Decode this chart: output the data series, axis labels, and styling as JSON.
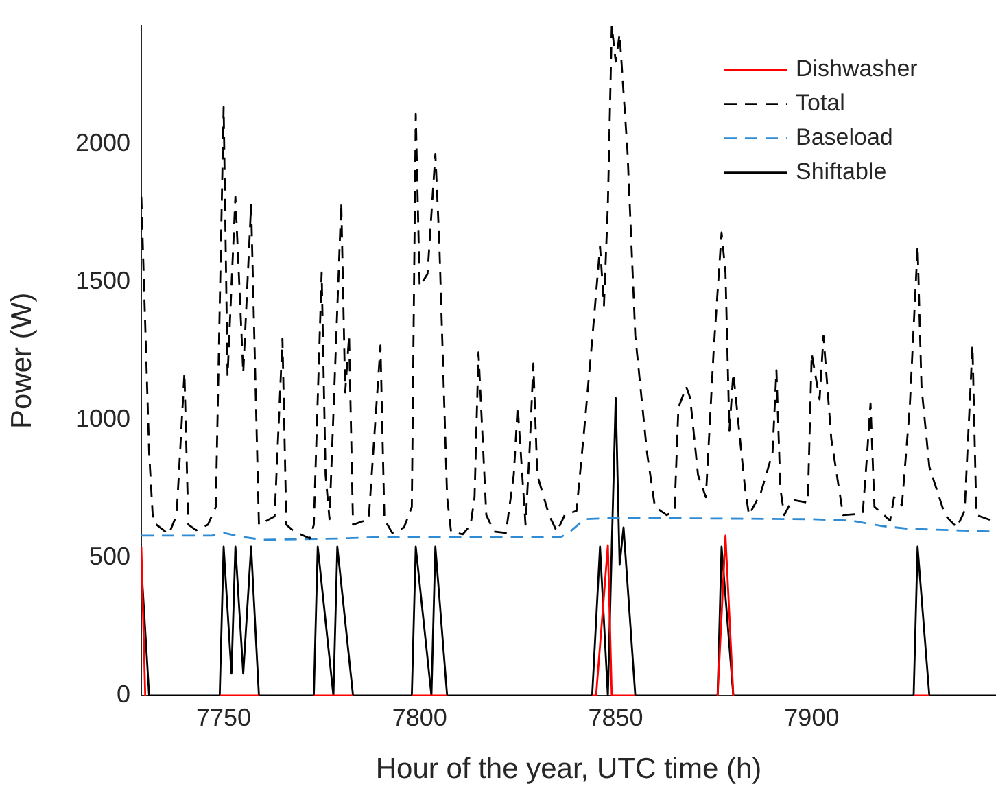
{
  "chart_data": {
    "type": "line",
    "xlabel": "Hour of the year, UTC time (h)",
    "ylabel": "Power (W)",
    "xlim": [
      7729,
      7947
    ],
    "ylim": [
      0,
      2430
    ],
    "xticks": [
      7750,
      7800,
      7850,
      7900
    ],
    "yticks": [
      0,
      500,
      1000,
      1500,
      2000
    ],
    "legend": "top right",
    "marker": "none",
    "series": [
      {
        "name": "Dishwasher",
        "color": "#ff0000",
        "line_style": "solid",
        "x": [
          7729,
          7730,
          7731,
          7749,
          7759,
          7760,
          7773,
          7783,
          7784,
          7798,
          7807,
          7808,
          7844,
          7845,
          7848,
          7849,
          7855,
          7856,
          7876,
          7878,
          7880,
          7881,
          7926,
          7930
        ],
        "values": [
          540,
          0,
          null,
          0,
          0,
          null,
          0,
          0,
          null,
          0,
          0,
          null,
          0,
          0,
          545,
          0,
          0,
          null,
          0,
          580,
          0,
          null,
          0,
          0
        ]
      },
      {
        "name": "Total",
        "color": "#000000",
        "line_style": "dashed",
        "x": [
          7729,
          7731,
          7732,
          7736,
          7738,
          7740,
          7741,
          7743,
          7746,
          7748,
          7750,
          7751,
          7753,
          7755,
          7757,
          7759,
          7763,
          7765,
          7766,
          7768,
          7772,
          7773,
          7775,
          7776,
          7777,
          7780,
          7781,
          7782,
          7783,
          7787,
          7790,
          7791,
          7793,
          7796,
          7798,
          7799,
          7800,
          7802,
          7804,
          7805,
          7807,
          7808,
          7811,
          7813,
          7814,
          7815,
          7817,
          7819,
          7822,
          7824,
          7825,
          7827,
          7828,
          7829,
          7830,
          7833,
          7835,
          7837,
          7840,
          7842,
          7844,
          7846,
          7847,
          7848,
          7849,
          7850,
          7851,
          7853,
          7855,
          7858,
          7860,
          7863,
          7865,
          7866,
          7868,
          7869,
          7871,
          7873,
          7875,
          7877,
          7878,
          7879,
          7880,
          7883,
          7884,
          7887,
          7890,
          7891,
          7892,
          7893,
          7895,
          7899,
          7900,
          7902,
          7903,
          7905,
          7908,
          7913,
          7914,
          7915,
          7916,
          7920,
          7921,
          7923,
          7925,
          7927,
          7928,
          7930,
          7934,
          7937,
          7939,
          7941,
          7942,
          7946,
          7947
        ],
        "values": [
          1810,
          880,
          630,
          585,
          655,
          1170,
          620,
          600,
          620,
          685,
          2135,
          1160,
          1810,
          1170,
          1780,
          620,
          650,
          1295,
          620,
          595,
          570,
          620,
          1535,
          800,
          640,
          1790,
          1100,
          1305,
          620,
          640,
          1270,
          640,
          590,
          610,
          685,
          2110,
          1485,
          1530,
          1965,
          1645,
          720,
          595,
          585,
          620,
          720,
          1245,
          655,
          595,
          590,
          800,
          1050,
          620,
          880,
          1205,
          800,
          655,
          595,
          655,
          670,
          970,
          1290,
          1630,
          1415,
          1780,
          2430,
          2300,
          2400,
          1975,
          1305,
          880,
          685,
          655,
          670,
          1045,
          1120,
          1080,
          800,
          720,
          1255,
          1680,
          1535,
          960,
          1170,
          750,
          655,
          735,
          880,
          1180,
          750,
          655,
          710,
          700,
          1240,
          1075,
          1305,
          930,
          655,
          660,
          850,
          1060,
          685,
          635,
          720,
          690,
          1045,
          1630,
          1120,
          830,
          655,
          610,
          670,
          1270,
          655,
          635,
          640
        ]
      },
      {
        "name": "Baseload",
        "color": "#2e8bd4",
        "line_style": "dashed",
        "x": [
          7729,
          7747,
          7750,
          7755,
          7760,
          7780,
          7790,
          7836,
          7838,
          7842,
          7850,
          7900,
          7910,
          7918,
          7925,
          7947
        ],
        "values": [
          580,
          580,
          590,
          575,
          565,
          570,
          575,
          575,
          590,
          640,
          645,
          640,
          635,
          615,
          605,
          595
        ]
      },
      {
        "name": "Shiftable",
        "color": "#000000",
        "line_style": "solid",
        "x": [
          7729,
          7731,
          7749,
          7750,
          7752,
          7753,
          7755,
          7757,
          7759,
          7773,
          7774,
          7778,
          7779,
          7783,
          7798,
          7799,
          7803,
          7804,
          7807,
          7844,
          7846,
          7848,
          7850,
          7851,
          7852,
          7855,
          7876,
          7877,
          7880,
          7926,
          7927,
          7930,
          7947
        ],
        "values": [
          470,
          0,
          0,
          540,
          80,
          540,
          80,
          540,
          0,
          0,
          540,
          0,
          540,
          0,
          0,
          540,
          0,
          540,
          0,
          0,
          540,
          0,
          1080,
          475,
          610,
          0,
          0,
          540,
          0,
          0,
          540,
          0,
          0
        ]
      }
    ]
  }
}
